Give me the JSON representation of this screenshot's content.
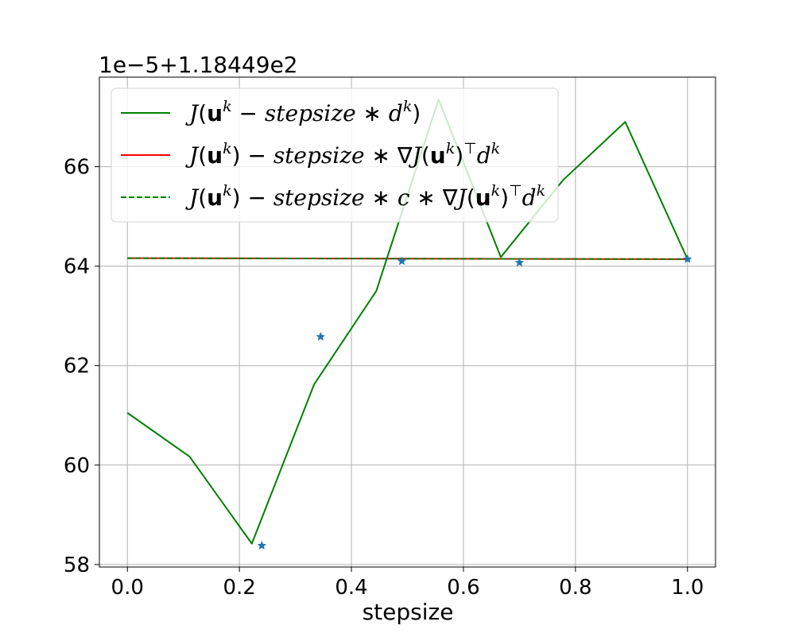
{
  "chart_data": {
    "type": "line",
    "xlabel": "stepsize",
    "ylabel": "",
    "offset_text": "1e−5+1.18449e2",
    "xlim": [
      -0.05,
      1.05
    ],
    "ylim": [
      57.95,
      67.8
    ],
    "xticks": [
      0.0,
      0.2,
      0.4,
      0.6,
      0.8,
      1.0
    ],
    "xtick_labels": [
      "0.0",
      "0.2",
      "0.4",
      "0.6",
      "0.8",
      "1.0"
    ],
    "yticks": [
      58,
      60,
      62,
      64,
      66
    ],
    "ytick_labels": [
      "58",
      "60",
      "62",
      "64",
      "66"
    ],
    "grid": true,
    "legend_position": "upper-left",
    "series": [
      {
        "name": "J(u^k − stepsize * d^k)",
        "kind": "line",
        "color": "#008000",
        "dash": "solid",
        "x": [
          0.0,
          0.1111,
          0.2222,
          0.3333,
          0.4444,
          0.5556,
          0.6667,
          0.7778,
          0.8889,
          1.0
        ],
        "y": [
          61.05,
          60.17,
          58.42,
          61.62,
          63.5,
          67.35,
          64.18,
          65.73,
          66.9,
          64.14
        ]
      },
      {
        "name": "J(u^k) − stepsize * ∇J(u^k)⊤ d^k",
        "kind": "line",
        "color": "#ff0000",
        "dash": "solid",
        "x": [
          0.0,
          1.0
        ],
        "y": [
          64.16,
          64.14
        ]
      },
      {
        "name": "J(u^k) − stepsize * c * ∇J(u^k)⊤ d^k",
        "kind": "line",
        "color": "#008000",
        "dash": "dashed",
        "x": [
          0.0,
          1.0
        ],
        "y": [
          64.16,
          64.14
        ]
      },
      {
        "name": "",
        "kind": "scatter",
        "marker": "star",
        "color": "#1f77b4",
        "x": [
          0.24,
          0.345,
          0.49,
          0.7,
          1.0
        ],
        "y": [
          58.38,
          62.58,
          64.1,
          64.07,
          64.14
        ]
      }
    ]
  }
}
